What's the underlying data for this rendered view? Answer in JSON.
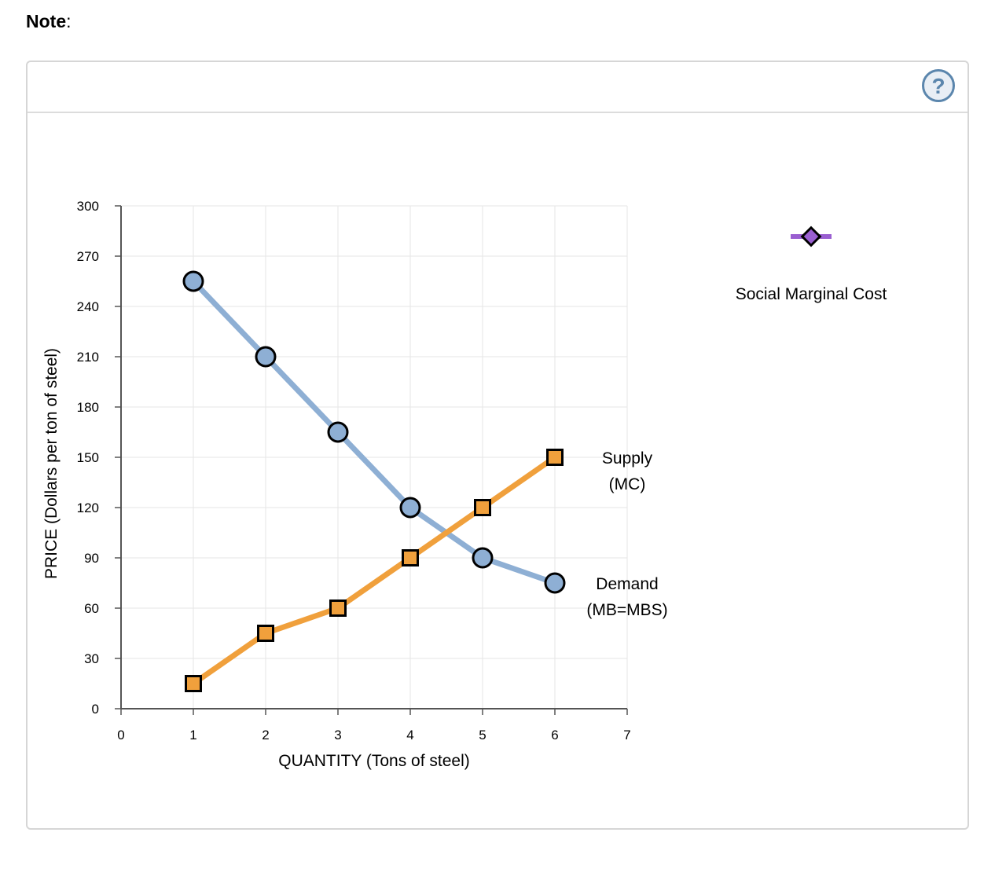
{
  "note": {
    "label": "Note",
    "colon": ":"
  },
  "help": {
    "label": "?"
  },
  "legend": {
    "tool_label": "Social Marginal Cost"
  },
  "colors": {
    "demand": "#8eafd4",
    "supply": "#f0a03c",
    "legend_tool_line": "#9a5fd1",
    "legend_tool_marker": "#9a5fd1"
  },
  "chart_data": {
    "type": "line",
    "xlabel": "QUANTITY (Tons of steel)",
    "ylabel": "PRICE (Dollars per ton of steel)",
    "xlim": [
      0,
      7
    ],
    "ylim": [
      0,
      300
    ],
    "xticks": [
      0,
      1,
      2,
      3,
      4,
      5,
      6,
      7
    ],
    "yticks": [
      0,
      30,
      60,
      90,
      120,
      150,
      180,
      210,
      240,
      270,
      300
    ],
    "grid": true,
    "series": [
      {
        "name_lines": [
          "Demand",
          "(MB=MBS)"
        ],
        "marker": "circle",
        "x": [
          1,
          2,
          3,
          4,
          5,
          6
        ],
        "y": [
          255,
          210,
          165,
          120,
          90,
          75
        ]
      },
      {
        "name_lines": [
          "Supply",
          "(MC)"
        ],
        "marker": "square",
        "x": [
          1,
          2,
          3,
          4,
          5,
          6
        ],
        "y": [
          15,
          45,
          60,
          90,
          120,
          150
        ]
      }
    ]
  }
}
